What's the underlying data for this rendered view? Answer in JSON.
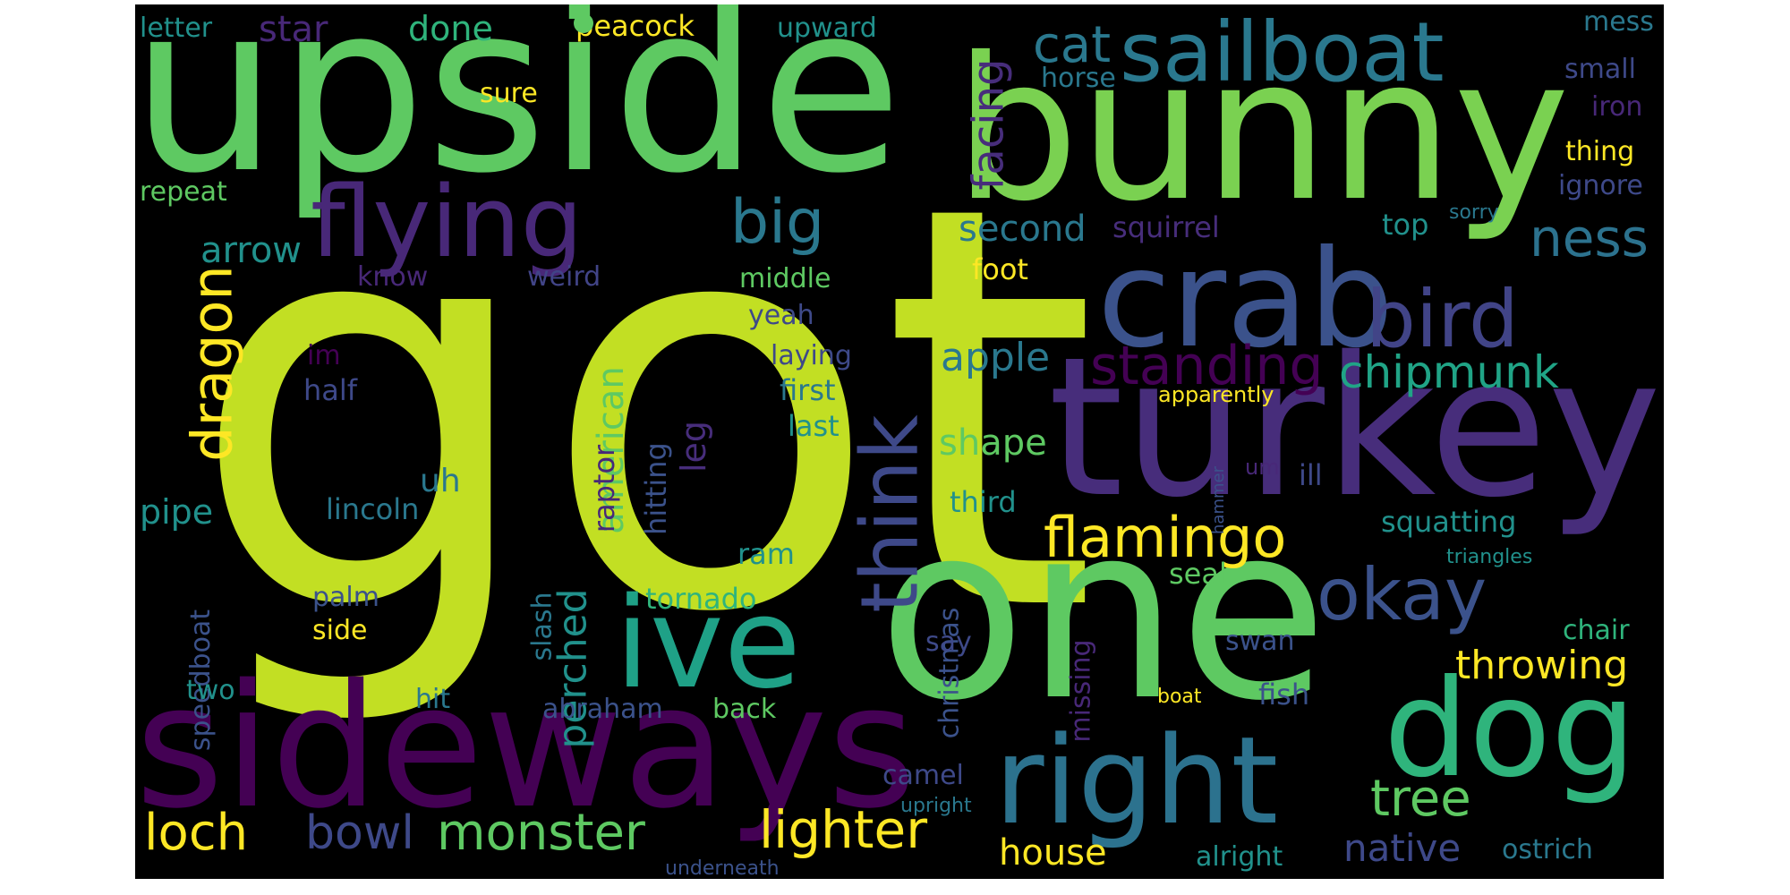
{
  "palette": {
    "lime": "#c2df23",
    "green": "#5ec962",
    "teal": "#21918c",
    "blue": "#3b528b",
    "purple": "#440154",
    "yellow": "#fde725",
    "violet": "#482878"
  },
  "words": {
    "got": "got",
    "upside": "upside",
    "bunny": "bunny",
    "turkey": "turkey",
    "one": "one",
    "sideways": "sideways",
    "dog": "dog",
    "crab": "crab",
    "right": "right",
    "ive": "ive",
    "flying": "flying",
    "sailboat": "sailboat",
    "bird": "bird",
    "think": "think",
    "okay": "okay",
    "flamingo": "flamingo",
    "dragon": "dragon",
    "standing": "standing",
    "chipmunk": "chipmunk",
    "ness": "ness",
    "big": "big",
    "cat": "cat",
    "monster": "monster",
    "lighter": "lighter",
    "loch": "loch",
    "bowl": "bowl",
    "tree": "tree",
    "throwing": "throwing",
    "perched": "perched",
    "american": "american",
    "facing": "facing",
    "apple": "apple",
    "shape": "shape",
    "native": "native",
    "house": "house",
    "arrow": "arrow",
    "second": "second",
    "star": "star",
    "done": "done",
    "peacock": "peacock",
    "upward": "upward",
    "letter": "letter",
    "mess": "mess",
    "sure": "sure",
    "horse": "horse",
    "small": "small",
    "iron": "iron",
    "thing": "thing",
    "ignore": "ignore",
    "repeat": "repeat",
    "sorry": "sorry",
    "top": "top",
    "squirrel": "squirrel",
    "foot": "foot",
    "know": "know",
    "weird": "weird",
    "middle": "middle",
    "yeah": "yeah",
    "laying": "laying",
    "im": "im",
    "half": "half",
    "first": "first",
    "apparently": "apparently",
    "last": "last",
    "raptor": "raptor",
    "hitting": "hitting",
    "leg": "leg",
    "uh": "uh",
    "pipe": "pipe",
    "lincoln": "lincoln",
    "third": "third",
    "squatting": "squatting",
    "um": "um",
    "ill": "ill",
    "hammer": "hammer",
    "triangles": "triangles",
    "seal": "seal",
    "ram": "ram",
    "slash": "slash",
    "tornado": "tornado",
    "palm": "palm",
    "side": "side",
    "speedboat": "speedboat",
    "christmas": "christmas",
    "chair": "chair",
    "missing": "missing",
    "say": "say",
    "swan": "swan",
    "two": "two",
    "hit": "hit",
    "abraham": "abraham",
    "back": "back",
    "fish": "fish",
    "boat": "boat",
    "camel": "camel",
    "upright": "upright",
    "alright": "alright",
    "underneath": "underneath",
    "ostrich": "ostrich"
  }
}
